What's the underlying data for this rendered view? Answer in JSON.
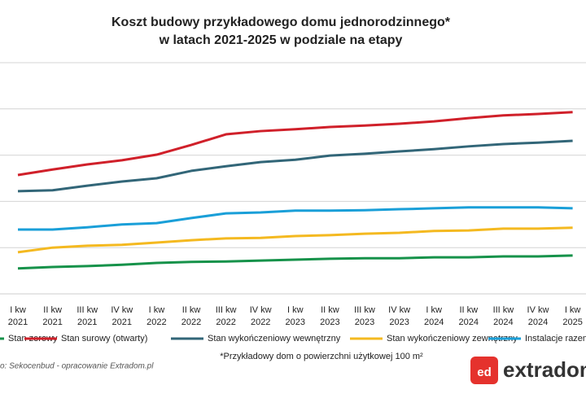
{
  "chart_data": {
    "type": "line",
    "title": [
      "Koszt budowy przykładowego domu jednorodzinnego*",
      "w latach 2021-2025 w podziale na etapy"
    ],
    "categories": [
      {
        "quarter": "I kw",
        "year": "2021"
      },
      {
        "quarter": "II kw",
        "year": "2021"
      },
      {
        "quarter": "III kw",
        "year": "2021"
      },
      {
        "quarter": "IV kw",
        "year": "2021"
      },
      {
        "quarter": "I kw",
        "year": "2022"
      },
      {
        "quarter": "II kw",
        "year": "2022"
      },
      {
        "quarter": "III kw",
        "year": "2022"
      },
      {
        "quarter": "IV kw",
        "year": "2022"
      },
      {
        "quarter": "I kw",
        "year": "2023"
      },
      {
        "quarter": "II kw",
        "year": "2023"
      },
      {
        "quarter": "III kw",
        "year": "2023"
      },
      {
        "quarter": "IV kw",
        "year": "2023"
      },
      {
        "quarter": "I kw",
        "year": "2024"
      },
      {
        "quarter": "II kw",
        "year": "2024"
      },
      {
        "quarter": "III kw",
        "year": "2024"
      },
      {
        "quarter": "IV kw",
        "year": "2024"
      },
      {
        "quarter": "I kw",
        "year": "2025"
      }
    ],
    "series": [
      {
        "name": "Stan zerowy",
        "color": "#16924a",
        "values": [
          0.55,
          0.58,
          0.6,
          0.63,
          0.67,
          0.69,
          0.7,
          0.72,
          0.74,
          0.76,
          0.77,
          0.77,
          0.79,
          0.79,
          0.81,
          0.81,
          0.83
        ]
      },
      {
        "name": "Stan surowy (otwarty)",
        "color": "#d0202a",
        "values": [
          2.57,
          2.69,
          2.8,
          2.89,
          3.01,
          3.22,
          3.45,
          3.52,
          3.56,
          3.61,
          3.64,
          3.68,
          3.73,
          3.8,
          3.86,
          3.89,
          3.93
        ]
      },
      {
        "name": "Stan wykończeniowy wewnętrzny",
        "color": "#326678",
        "values": [
          2.22,
          2.24,
          2.34,
          2.43,
          2.5,
          2.66,
          2.76,
          2.85,
          2.9,
          2.99,
          3.03,
          3.08,
          3.13,
          3.19,
          3.24,
          3.27,
          3.31
        ]
      },
      {
        "name": "Stan wykończeniowy zewnętrzny",
        "color": "#f4b920",
        "values": [
          0.9,
          1.0,
          1.04,
          1.06,
          1.11,
          1.16,
          1.2,
          1.21,
          1.25,
          1.27,
          1.3,
          1.32,
          1.36,
          1.37,
          1.41,
          1.41,
          1.43
        ]
      },
      {
        "name": "Instalacje razem",
        "color": "#1a9fd8",
        "values": [
          1.39,
          1.39,
          1.44,
          1.5,
          1.53,
          1.64,
          1.74,
          1.76,
          1.8,
          1.8,
          1.81,
          1.83,
          1.85,
          1.87,
          1.87,
          1.87,
          1.85
        ]
      }
    ],
    "ylim": [
      0,
      5
    ],
    "grid_lines": [
      1,
      2,
      3,
      4,
      5
    ],
    "note": "*Przykładowy dom o powierzchni użytkowej 100 m²",
    "source": "o: Sekocenbud - opracowanie Extradom.pl",
    "logo": {
      "icon": "ed",
      "text": "extradom"
    }
  }
}
